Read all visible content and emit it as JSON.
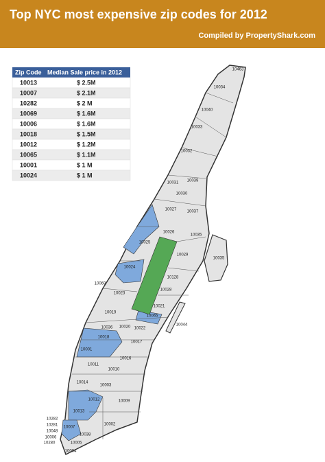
{
  "header": {
    "title": "Top NYC most expensive zip codes for 2012",
    "credit": "Compiled by PropertyShark.com"
  },
  "table": {
    "columns": [
      "Zip Code",
      "Median Sale price in 2012"
    ],
    "rows": [
      [
        "10013",
        "$ 2.5M"
      ],
      [
        "10007",
        "$ 2.1M"
      ],
      [
        "10282",
        "$ 2 M"
      ],
      [
        "10069",
        "$ 1.6M"
      ],
      [
        "10006",
        "$ 1.6M"
      ],
      [
        "10018",
        "$ 1.5M"
      ],
      [
        "10012",
        "$ 1.2M"
      ],
      [
        "10065",
        "$ 1.1M"
      ],
      [
        "10001",
        "$ 1 M"
      ],
      [
        "10024",
        "$ 1 M"
      ]
    ]
  },
  "map": {
    "labels": [
      "10463",
      "10034",
      "10040",
      "10033",
      "10032",
      "10031",
      "10039",
      "10030",
      "10027",
      "10037",
      "10026",
      "10035",
      "10025",
      "10029",
      "10035",
      "10024",
      "10128",
      "10069",
      "10023",
      "10028",
      "10021",
      "10019",
      "10065",
      "10044",
      "10036",
      "10020",
      "10022",
      "10018",
      "10017",
      "10001",
      "10011",
      "10010",
      "10016",
      "10014",
      "10003",
      "10012",
      "10009",
      "10013",
      "10002",
      "10282",
      "10281",
      "10048",
      "10006",
      "10280",
      "10007",
      "10038",
      "10005",
      "10004"
    ]
  }
}
